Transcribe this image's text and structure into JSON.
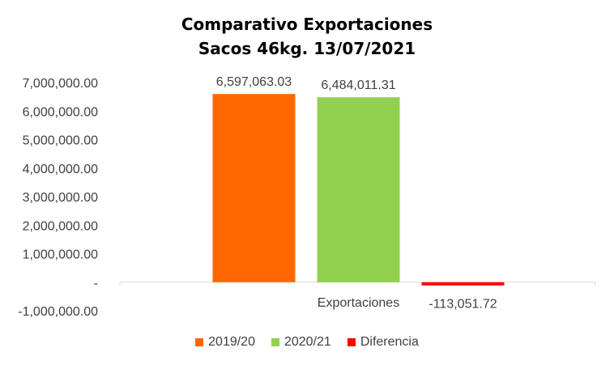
{
  "chart_data": {
    "type": "bar",
    "title_line1": "Comparativo  Exportaciones",
    "title_line2": "Sacos 46kg. 13/07/2021",
    "categories": [
      "Exportaciones"
    ],
    "series": [
      {
        "name": "2019/20",
        "values": [
          6597063.03
        ],
        "label": "6,597,063.03",
        "color": "#FF6600"
      },
      {
        "name": "2020/21",
        "values": [
          6484011.31
        ],
        "label": "6,484,011.31",
        "color": "#92D050"
      },
      {
        "name": "Diferencia",
        "values": [
          -113051.72
        ],
        "label": "-113,051.72",
        "color": "#FF0000"
      }
    ],
    "ylim": [
      -1000000,
      7000000
    ],
    "yticks": [
      7000000,
      6000000,
      5000000,
      4000000,
      3000000,
      2000000,
      1000000,
      0,
      -1000000
    ],
    "ytick_labels": [
      "7,000,000.00",
      "6,000,000.00",
      "5,000,000.00",
      "4,000,000.00",
      "3,000,000.00",
      "2,000,000.00",
      "1,000,000.00",
      "-",
      "-1,000,000.00"
    ],
    "xlabel": "",
    "ylabel": "",
    "grid": false,
    "legend_position": "bottom"
  }
}
